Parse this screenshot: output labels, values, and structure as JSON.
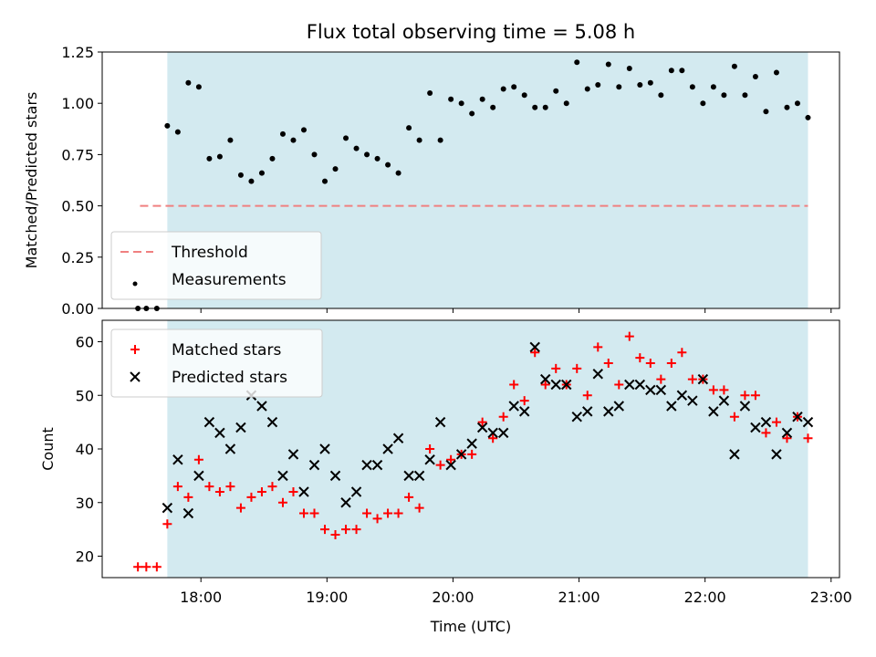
{
  "chart_data": [
    {
      "type": "scatter",
      "title": "Flux total observing time = 5.08 h",
      "ylabel": "Matched/Predicted stars",
      "xlabel": "",
      "ylim": [
        0,
        1.25
      ],
      "xlim": [
        "17:13",
        "23:04"
      ],
      "yticks": [
        "0.00",
        "0.25",
        "0.50",
        "0.75",
        "1.00",
        "1.25"
      ],
      "xticks": [
        "18:00",
        "19:00",
        "20:00",
        "21:00",
        "22:00",
        "23:00"
      ],
      "shaded_span": [
        "17:44",
        "22:49"
      ],
      "shade_color": "#d3eaf0",
      "threshold": {
        "name": "Threshold",
        "y": 0.5,
        "x_from": "17:31",
        "x_to": "22:49",
        "color": "#f08080"
      },
      "legend_position": "lower-left",
      "series": [
        {
          "name": "Measurements",
          "marker": "dot",
          "color": "#000000",
          "x": [
            "17:30",
            "17:34",
            "17:39",
            "17:44",
            "17:49",
            "17:54",
            "17:59",
            "18:04",
            "18:09",
            "18:14",
            "18:19",
            "18:24",
            "18:29",
            "18:34",
            "18:39",
            "18:44",
            "18:49",
            "18:54",
            "18:59",
            "19:04",
            "19:09",
            "19:14",
            "19:19",
            "19:24",
            "19:29",
            "19:34",
            "19:39",
            "19:44",
            "19:49",
            "19:54",
            "19:59",
            "20:04",
            "20:09",
            "20:14",
            "20:19",
            "20:24",
            "20:29",
            "20:34",
            "20:39",
            "20:44",
            "20:49",
            "20:54",
            "20:59",
            "21:04",
            "21:09",
            "21:14",
            "21:19",
            "21:24",
            "21:29",
            "21:34",
            "21:39",
            "21:44",
            "21:49",
            "21:54",
            "21:59",
            "22:04",
            "22:09",
            "22:14",
            "22:19",
            "22:24",
            "22:29",
            "22:34",
            "22:39",
            "22:44",
            "22:49"
          ],
          "y": [
            0.0,
            0.0,
            0.0,
            0.89,
            0.86,
            1.1,
            1.08,
            0.73,
            0.74,
            0.82,
            0.65,
            0.62,
            0.66,
            0.73,
            0.85,
            0.82,
            0.87,
            0.75,
            0.62,
            0.68,
            0.83,
            0.78,
            0.75,
            0.73,
            0.7,
            0.66,
            0.88,
            0.82,
            1.05,
            0.82,
            1.02,
            1.0,
            0.95,
            1.02,
            0.98,
            1.07,
            1.08,
            1.04,
            0.98,
            0.98,
            1.06,
            1.0,
            1.2,
            1.07,
            1.09,
            1.19,
            1.08,
            1.17,
            1.09,
            1.1,
            1.04,
            1.16,
            1.16,
            1.08,
            1.0,
            1.08,
            1.04,
            1.18,
            1.04,
            1.13,
            0.96,
            1.15,
            0.98,
            1.0,
            0.93
          ]
        }
      ]
    },
    {
      "type": "scatter",
      "title": "",
      "ylabel": "Count",
      "xlabel": "Time (UTC)",
      "ylim": [
        16,
        64
      ],
      "xlim": [
        "17:13",
        "23:04"
      ],
      "yticks": [
        "20",
        "30",
        "40",
        "50",
        "60"
      ],
      "xticks": [
        "18:00",
        "19:00",
        "20:00",
        "21:00",
        "22:00",
        "23:00"
      ],
      "shaded_span": [
        "17:44",
        "22:49"
      ],
      "shade_color": "#d3eaf0",
      "legend_position": "upper-left",
      "series": [
        {
          "name": "Matched stars",
          "marker": "plus",
          "color": "#ff0000",
          "x": [
            "17:30",
            "17:34",
            "17:39",
            "17:44",
            "17:49",
            "17:54",
            "17:59",
            "18:04",
            "18:09",
            "18:14",
            "18:19",
            "18:24",
            "18:29",
            "18:34",
            "18:39",
            "18:44",
            "18:49",
            "18:54",
            "18:59",
            "19:04",
            "19:09",
            "19:14",
            "19:19",
            "19:24",
            "19:29",
            "19:34",
            "19:39",
            "19:44",
            "19:49",
            "19:54",
            "19:59",
            "20:04",
            "20:09",
            "20:14",
            "20:19",
            "20:24",
            "20:29",
            "20:34",
            "20:39",
            "20:44",
            "20:49",
            "20:54",
            "20:59",
            "21:04",
            "21:09",
            "21:14",
            "21:19",
            "21:24",
            "21:29",
            "21:34",
            "21:39",
            "21:44",
            "21:49",
            "21:54",
            "21:59",
            "22:04",
            "22:09",
            "22:14",
            "22:19",
            "22:24",
            "22:29",
            "22:34",
            "22:39",
            "22:44",
            "22:49"
          ],
          "y": [
            18,
            18,
            18,
            26,
            33,
            31,
            38,
            33,
            32,
            33,
            29,
            31,
            32,
            33,
            30,
            32,
            28,
            28,
            25,
            24,
            25,
            25,
            28,
            27,
            28,
            28,
            31,
            29,
            40,
            37,
            38,
            39,
            39,
            45,
            42,
            46,
            52,
            49,
            58,
            52,
            55,
            52,
            55,
            50,
            59,
            56,
            52,
            61,
            57,
            56,
            53,
            56,
            58,
            53,
            53,
            51,
            51,
            46,
            50,
            50,
            43,
            45,
            42,
            46,
            42
          ]
        },
        {
          "name": "Predicted stars",
          "marker": "x",
          "color": "#000000",
          "x": [
            "17:44",
            "17:49",
            "17:54",
            "17:59",
            "18:04",
            "18:09",
            "18:14",
            "18:19",
            "18:24",
            "18:29",
            "18:34",
            "18:39",
            "18:44",
            "18:49",
            "18:54",
            "18:59",
            "19:04",
            "19:09",
            "19:14",
            "19:19",
            "19:24",
            "19:29",
            "19:34",
            "19:39",
            "19:44",
            "19:49",
            "19:54",
            "19:59",
            "20:04",
            "20:09",
            "20:14",
            "20:19",
            "20:24",
            "20:29",
            "20:34",
            "20:39",
            "20:44",
            "20:49",
            "20:54",
            "20:59",
            "21:04",
            "21:09",
            "21:14",
            "21:19",
            "21:24",
            "21:29",
            "21:34",
            "21:39",
            "21:44",
            "21:49",
            "21:54",
            "21:59",
            "22:04",
            "22:09",
            "22:14",
            "22:19",
            "22:24",
            "22:29",
            "22:34",
            "22:39",
            "22:44",
            "22:49"
          ],
          "y": [
            29,
            38,
            28,
            35,
            45,
            43,
            40,
            44,
            50,
            48,
            45,
            35,
            39,
            32,
            37,
            40,
            35,
            30,
            32,
            37,
            37,
            40,
            42,
            35,
            35,
            38,
            45,
            37,
            39,
            41,
            44,
            43,
            43,
            48,
            47,
            59,
            53,
            52,
            52,
            46,
            47,
            54,
            47,
            48,
            52,
            52,
            51,
            51,
            48,
            50,
            49,
            53,
            47,
            49,
            39,
            48,
            44,
            45,
            39,
            43,
            46,
            45
          ]
        }
      ]
    }
  ]
}
